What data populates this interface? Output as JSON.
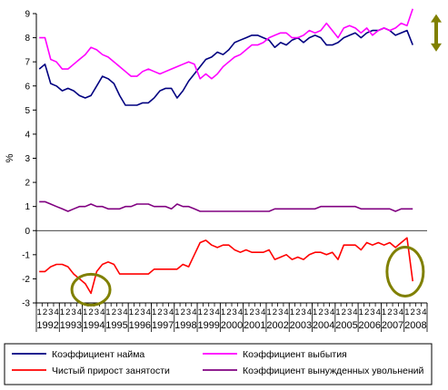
{
  "chart_data": {
    "type": "line",
    "ylabel": "%",
    "ylim": [
      -3,
      9
    ],
    "yticks": [
      "9",
      "8",
      "7",
      "6",
      "5",
      "4",
      "3",
      "2",
      "1",
      "0",
      "-1",
      "-2",
      "-3"
    ],
    "quarter_labels": [
      "1",
      "2",
      "3",
      "4"
    ],
    "years": [
      "1992",
      "1993",
      "1994",
      "1995",
      "1996",
      "1997",
      "1998",
      "1999",
      "2000",
      "2001",
      "2002",
      "2003",
      "2004",
      "2005",
      "2006",
      "2007",
      "2008"
    ],
    "series": [
      {
        "name": "Коэффициент найма",
        "color": "#000080",
        "values": [
          6.7,
          6.9,
          6.1,
          6.0,
          5.8,
          5.9,
          5.8,
          5.6,
          5.5,
          5.6,
          6.0,
          6.4,
          6.3,
          6.1,
          5.6,
          5.2,
          5.2,
          5.2,
          5.3,
          5.3,
          5.5,
          5.8,
          5.9,
          5.9,
          5.5,
          5.8,
          6.2,
          6.5,
          6.8,
          7.1,
          7.2,
          7.4,
          7.3,
          7.5,
          7.8,
          7.9,
          8.0,
          8.1,
          8.1,
          8.0,
          7.9,
          7.6,
          7.8,
          7.7,
          7.9,
          8.0,
          7.8,
          8.0,
          8.1,
          8.0,
          7.7,
          7.7,
          7.8,
          8.0,
          8.1,
          8.2,
          8.0,
          8.2,
          8.3,
          8.3,
          8.4,
          8.3,
          8.1,
          8.2,
          8.3,
          7.7
        ]
      },
      {
        "name": "Коэффициент выбытия",
        "color": "#ff00ff",
        "values": [
          8.0,
          8.0,
          7.1,
          7.0,
          6.7,
          6.7,
          6.9,
          7.1,
          7.3,
          7.6,
          7.5,
          7.3,
          7.2,
          7.0,
          6.8,
          6.6,
          6.4,
          6.4,
          6.6,
          6.7,
          6.6,
          6.5,
          6.6,
          6.7,
          6.8,
          6.9,
          7.0,
          6.9,
          6.3,
          6.5,
          6.3,
          6.5,
          6.8,
          7.0,
          7.2,
          7.3,
          7.5,
          7.7,
          7.7,
          7.8,
          8.0,
          8.1,
          8.2,
          8.2,
          8.0,
          8.0,
          8.1,
          8.3,
          8.2,
          8.3,
          8.6,
          8.3,
          8.0,
          8.4,
          8.5,
          8.4,
          8.2,
          8.4,
          8.1,
          8.3,
          8.4,
          8.3,
          8.4,
          8.6,
          8.5,
          9.2
        ]
      },
      {
        "name": "Чистый прирост занятости",
        "color": "#ff0000",
        "values": [
          -1.7,
          -1.7,
          -1.5,
          -1.4,
          -1.4,
          -1.5,
          -1.8,
          -2.0,
          -2.2,
          -2.6,
          -1.7,
          -1.4,
          -1.3,
          -1.4,
          -1.8,
          -1.8,
          -1.8,
          -1.8,
          -1.8,
          -1.8,
          -1.6,
          -1.6,
          -1.6,
          -1.6,
          -1.6,
          -1.4,
          -1.5,
          -1.0,
          -0.5,
          -0.4,
          -0.6,
          -0.7,
          -0.6,
          -0.6,
          -0.8,
          -0.9,
          -0.8,
          -0.9,
          -0.9,
          -0.9,
          -0.8,
          -1.2,
          -1.1,
          -1.0,
          -1.2,
          -1.1,
          -1.2,
          -1.0,
          -0.9,
          -0.9,
          -1.0,
          -0.9,
          -1.2,
          -0.6,
          -0.6,
          -0.6,
          -0.8,
          -0.5,
          -0.6,
          -0.5,
          -0.6,
          -0.5,
          -0.7,
          -0.5,
          -0.3,
          -2.1
        ]
      },
      {
        "name": "Коэффициент вынужденных увольнений",
        "color": "#800080",
        "values": [
          1.2,
          1.2,
          1.1,
          1.0,
          0.9,
          0.8,
          0.9,
          1.0,
          1.0,
          1.1,
          1.0,
          1.0,
          0.9,
          0.9,
          0.9,
          1.0,
          1.0,
          1.1,
          1.1,
          1.1,
          1.0,
          1.0,
          1.0,
          0.9,
          1.1,
          1.0,
          1.0,
          0.9,
          0.8,
          0.8,
          0.8,
          0.8,
          0.8,
          0.8,
          0.8,
          0.8,
          0.8,
          0.8,
          0.8,
          0.8,
          0.8,
          0.9,
          0.9,
          0.9,
          0.9,
          0.9,
          0.9,
          0.9,
          0.9,
          1.0,
          1.0,
          1.0,
          1.0,
          1.0,
          1.0,
          1.0,
          0.9,
          0.9,
          0.9,
          0.9,
          0.9,
          0.9,
          0.8,
          0.9,
          0.9,
          0.9
        ]
      }
    ],
    "annotation_colors": {
      "ellipse": "#808000",
      "arrow": "#808000"
    },
    "grid": false,
    "legend_position": "bottom"
  }
}
